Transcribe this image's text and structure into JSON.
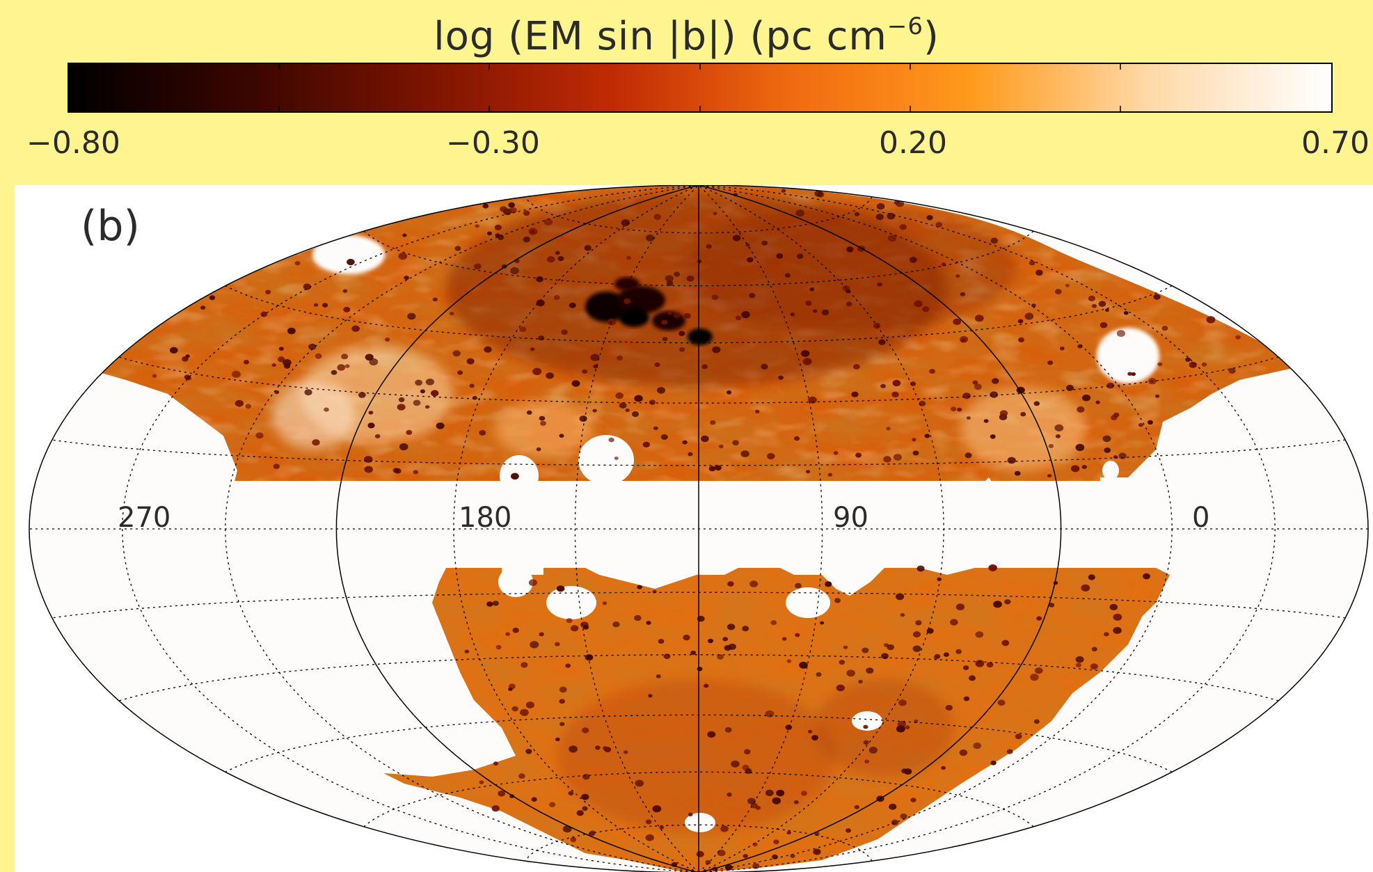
{
  "colorbar": {
    "title_main": "log (EM sin |b|) (pc cm",
    "title_exp": "−6",
    "title_close": ")",
    "ticks": [
      "−0.80",
      "−0.30",
      "0.20",
      "0.70"
    ],
    "range": [
      -0.8,
      0.7
    ],
    "colormap": [
      "#000000",
      "#3a0600",
      "#7d1400",
      "#c02a04",
      "#f06a10",
      "#ff9a1c",
      "#ffd9a8",
      "#ffffff"
    ]
  },
  "map": {
    "panel_label": "(b)",
    "projection": "Hammer-Aitoff (Galactic)",
    "lon_labels": [
      "270",
      "180",
      "90",
      "0"
    ],
    "masked_color": "#fefcfa",
    "grid_style": "dotted"
  }
}
